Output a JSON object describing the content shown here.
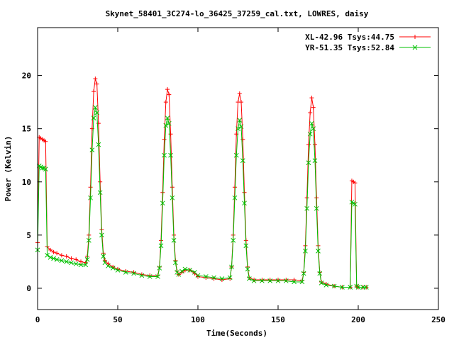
{
  "chart_data": {
    "type": "line",
    "title": "Skynet_58401_3C274-lo_36425_37259_cal.txt, LOWRES, daisy",
    "xlabel": "Time(Seconds)",
    "ylabel": "Power (Kelvin)",
    "xlim": [
      0,
      250
    ],
    "ylim": [
      -2,
      24.5
    ],
    "xticks": [
      0,
      50,
      100,
      150,
      200,
      250
    ],
    "yticks": [
      0,
      5,
      10,
      15,
      20
    ],
    "grid": false,
    "legend_position": "top-right",
    "series": [
      {
        "name": "XL-42.96 Tsys:44.75",
        "color": "#ff0000",
        "marker": "plus",
        "points": [
          [
            0,
            4.3
          ],
          [
            1,
            14.2
          ],
          [
            2,
            14.1
          ],
          [
            3,
            14.0
          ],
          [
            4,
            13.9
          ],
          [
            5,
            13.8
          ],
          [
            6,
            3.9
          ],
          [
            8,
            3.6
          ],
          [
            10,
            3.4
          ],
          [
            12,
            3.3
          ],
          [
            15,
            3.1
          ],
          [
            18,
            3.0
          ],
          [
            21,
            2.8
          ],
          [
            24,
            2.7
          ],
          [
            27,
            2.5
          ],
          [
            30,
            2.4
          ],
          [
            31,
            3.0
          ],
          [
            32,
            5.0
          ],
          [
            33,
            9.5
          ],
          [
            34,
            15.0
          ],
          [
            35,
            18.5
          ],
          [
            36,
            19.7
          ],
          [
            37,
            19.2
          ],
          [
            38,
            15.5
          ],
          [
            39,
            10.0
          ],
          [
            40,
            5.5
          ],
          [
            41,
            3.3
          ],
          [
            42,
            2.6
          ],
          [
            44,
            2.3
          ],
          [
            47,
            2.0
          ],
          [
            50,
            1.8
          ],
          [
            55,
            1.6
          ],
          [
            60,
            1.5
          ],
          [
            65,
            1.3
          ],
          [
            70,
            1.2
          ],
          [
            75,
            1.2
          ],
          [
            76,
            2.0
          ],
          [
            77,
            4.5
          ],
          [
            78,
            9.0
          ],
          [
            79,
            14.0
          ],
          [
            80,
            17.5
          ],
          [
            81,
            18.7
          ],
          [
            82,
            18.2
          ],
          [
            83,
            14.5
          ],
          [
            84,
            9.5
          ],
          [
            85,
            5.0
          ],
          [
            86,
            2.6
          ],
          [
            87,
            1.6
          ],
          [
            88,
            1.3
          ],
          [
            90,
            1.5
          ],
          [
            92,
            1.7
          ],
          [
            95,
            1.7
          ],
          [
            98,
            1.4
          ],
          [
            100,
            1.1
          ],
          [
            105,
            1.0
          ],
          [
            110,
            0.9
          ],
          [
            115,
            0.8
          ],
          [
            120,
            0.9
          ],
          [
            121,
            2.0
          ],
          [
            122,
            5.0
          ],
          [
            123,
            9.5
          ],
          [
            124,
            14.5
          ],
          [
            125,
            17.5
          ],
          [
            126,
            18.3
          ],
          [
            127,
            17.5
          ],
          [
            128,
            14.0
          ],
          [
            129,
            9.0
          ],
          [
            130,
            4.5
          ],
          [
            131,
            2.0
          ],
          [
            132,
            1.0
          ],
          [
            135,
            0.8
          ],
          [
            140,
            0.8
          ],
          [
            145,
            0.8
          ],
          [
            150,
            0.8
          ],
          [
            155,
            0.8
          ],
          [
            160,
            0.8
          ],
          [
            165,
            0.7
          ],
          [
            166,
            1.5
          ],
          [
            167,
            4.0
          ],
          [
            168,
            8.5
          ],
          [
            169,
            13.5
          ],
          [
            170,
            16.5
          ],
          [
            171,
            17.9
          ],
          [
            172,
            17.0
          ],
          [
            173,
            13.5
          ],
          [
            174,
            8.5
          ],
          [
            175,
            4.0
          ],
          [
            176,
            1.5
          ],
          [
            177,
            0.6
          ],
          [
            180,
            0.4
          ],
          [
            185,
            0.2
          ],
          [
            190,
            0.1
          ],
          [
            195,
            0.1
          ],
          [
            196,
            10.1
          ],
          [
            197,
            10.0
          ],
          [
            198,
            9.9
          ],
          [
            199,
            0.2
          ],
          [
            200,
            0.1
          ],
          [
            203,
            0.1
          ],
          [
            205,
            0.1
          ]
        ]
      },
      {
        "name": "YR-51.35 Tsys:52.84",
        "color": "#00c000",
        "marker": "cross",
        "points": [
          [
            0,
            3.6
          ],
          [
            1,
            11.5
          ],
          [
            2,
            11.4
          ],
          [
            3,
            11.3
          ],
          [
            4,
            11.3
          ],
          [
            5,
            11.2
          ],
          [
            6,
            3.1
          ],
          [
            8,
            2.9
          ],
          [
            10,
            2.8
          ],
          [
            12,
            2.7
          ],
          [
            15,
            2.6
          ],
          [
            18,
            2.5
          ],
          [
            21,
            2.4
          ],
          [
            24,
            2.3
          ],
          [
            27,
            2.2
          ],
          [
            30,
            2.2
          ],
          [
            31,
            2.7
          ],
          [
            32,
            4.5
          ],
          [
            33,
            8.5
          ],
          [
            34,
            13.0
          ],
          [
            35,
            16.0
          ],
          [
            36,
            17.0
          ],
          [
            37,
            16.5
          ],
          [
            38,
            13.5
          ],
          [
            39,
            9.0
          ],
          [
            40,
            5.0
          ],
          [
            41,
            3.0
          ],
          [
            42,
            2.4
          ],
          [
            44,
            2.1
          ],
          [
            47,
            1.9
          ],
          [
            50,
            1.7
          ],
          [
            55,
            1.5
          ],
          [
            60,
            1.4
          ],
          [
            65,
            1.2
          ],
          [
            70,
            1.1
          ],
          [
            75,
            1.1
          ],
          [
            76,
            1.9
          ],
          [
            77,
            4.0
          ],
          [
            78,
            8.0
          ],
          [
            79,
            12.5
          ],
          [
            80,
            15.3
          ],
          [
            81,
            16.0
          ],
          [
            82,
            15.5
          ],
          [
            83,
            12.5
          ],
          [
            84,
            8.5
          ],
          [
            85,
            4.5
          ],
          [
            86,
            2.4
          ],
          [
            87,
            1.5
          ],
          [
            88,
            1.3
          ],
          [
            90,
            1.6
          ],
          [
            92,
            1.8
          ],
          [
            95,
            1.7
          ],
          [
            98,
            1.5
          ],
          [
            100,
            1.2
          ],
          [
            105,
            1.1
          ],
          [
            110,
            1.0
          ],
          [
            115,
            0.9
          ],
          [
            120,
            1.0
          ],
          [
            121,
            2.0
          ],
          [
            122,
            4.5
          ],
          [
            123,
            8.5
          ],
          [
            124,
            12.5
          ],
          [
            125,
            15.0
          ],
          [
            126,
            15.8
          ],
          [
            127,
            15.2
          ],
          [
            128,
            12.0
          ],
          [
            129,
            8.0
          ],
          [
            130,
            4.0
          ],
          [
            131,
            1.8
          ],
          [
            132,
            0.9
          ],
          [
            135,
            0.7
          ],
          [
            140,
            0.7
          ],
          [
            145,
            0.7
          ],
          [
            150,
            0.7
          ],
          [
            155,
            0.7
          ],
          [
            160,
            0.6
          ],
          [
            165,
            0.6
          ],
          [
            166,
            1.4
          ],
          [
            167,
            3.5
          ],
          [
            168,
            7.5
          ],
          [
            169,
            11.8
          ],
          [
            170,
            14.5
          ],
          [
            171,
            15.5
          ],
          [
            172,
            15.0
          ],
          [
            173,
            12.0
          ],
          [
            174,
            7.5
          ],
          [
            175,
            3.5
          ],
          [
            176,
            1.4
          ],
          [
            177,
            0.5
          ],
          [
            180,
            0.3
          ],
          [
            185,
            0.2
          ],
          [
            190,
            0.1
          ],
          [
            195,
            0.1
          ],
          [
            196,
            8.1
          ],
          [
            197,
            8.0
          ],
          [
            198,
            7.9
          ],
          [
            199,
            0.2
          ],
          [
            200,
            0.1
          ],
          [
            203,
            0.1
          ],
          [
            205,
            0.1
          ]
        ]
      }
    ]
  }
}
